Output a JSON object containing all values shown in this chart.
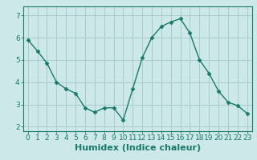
{
  "x": [
    0,
    1,
    2,
    3,
    4,
    5,
    6,
    7,
    8,
    9,
    10,
    11,
    12,
    13,
    14,
    15,
    16,
    17,
    18,
    19,
    20,
    21,
    22,
    23
  ],
  "y": [
    5.9,
    5.4,
    4.85,
    4.0,
    3.7,
    3.5,
    2.85,
    2.65,
    2.85,
    2.85,
    2.3,
    3.7,
    5.1,
    6.0,
    6.5,
    6.7,
    6.85,
    6.2,
    5.0,
    4.4,
    3.6,
    3.1,
    2.95,
    2.6
  ],
  "line_color": "#1a7a6a",
  "marker": "D",
  "marker_size": 2.5,
  "bg_color": "#cce8e8",
  "grid_color": "#aacccc",
  "xlabel": "Humidex (Indice chaleur)",
  "xlim": [
    -0.5,
    23.5
  ],
  "ylim": [
    1.8,
    7.4
  ],
  "yticks": [
    2,
    3,
    4,
    5,
    6,
    7
  ],
  "xticks": [
    0,
    1,
    2,
    3,
    4,
    5,
    6,
    7,
    8,
    9,
    10,
    11,
    12,
    13,
    14,
    15,
    16,
    17,
    18,
    19,
    20,
    21,
    22,
    23
  ],
  "tick_label_fontsize": 6.5,
  "xlabel_fontsize": 8,
  "spine_color": "#1a7a6a",
  "tick_color": "#1a7a6a"
}
